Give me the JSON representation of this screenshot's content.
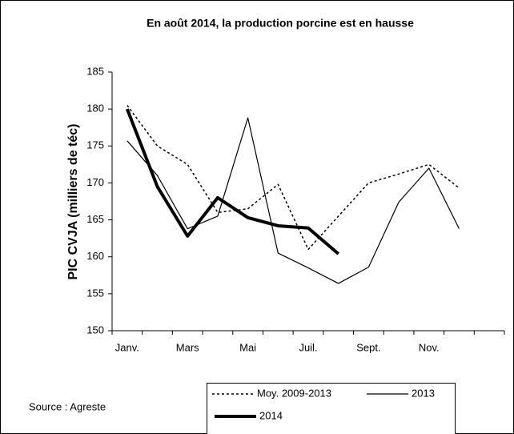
{
  "chart_data": {
    "type": "line",
    "title": "En août 2014, la production porcine est en hausse",
    "y_label": "PIC CVJA (milliers de téc)",
    "source": "Source : Agreste",
    "categories": [
      "Janv.",
      null,
      "Mars",
      null,
      "Mai",
      null,
      "Juil.",
      null,
      "Sept.",
      null,
      "Nov.",
      null,
      null
    ],
    "series": [
      {
        "name": "Moy. 2009-2013",
        "color": "#000000",
        "dash": "dotted",
        "width": 1.5,
        "values": [
          180.5,
          175,
          172.5,
          166,
          166.5,
          169.8,
          161,
          165.5,
          170,
          171.2,
          172.5,
          169.3,
          null
        ]
      },
      {
        "name": "2013",
        "color": "#000000",
        "dash": "solid",
        "width": 1.2,
        "values": [
          175.7,
          171,
          163.8,
          165.5,
          178.8,
          160.5,
          158.5,
          156.4,
          158.6,
          167.4,
          172,
          163.8,
          null
        ]
      },
      {
        "name": "2014",
        "color": "#000000",
        "dash": "solid",
        "width": 4,
        "values": [
          180,
          169.5,
          162.8,
          168,
          165.3,
          164.2,
          163.9,
          160.4,
          null,
          null,
          null,
          null,
          null
        ]
      }
    ],
    "ylim": [
      150,
      185
    ],
    "yticks": [
      150,
      155,
      160,
      165,
      170,
      175,
      180,
      185
    ],
    "grid": false,
    "legend": "bottom"
  }
}
